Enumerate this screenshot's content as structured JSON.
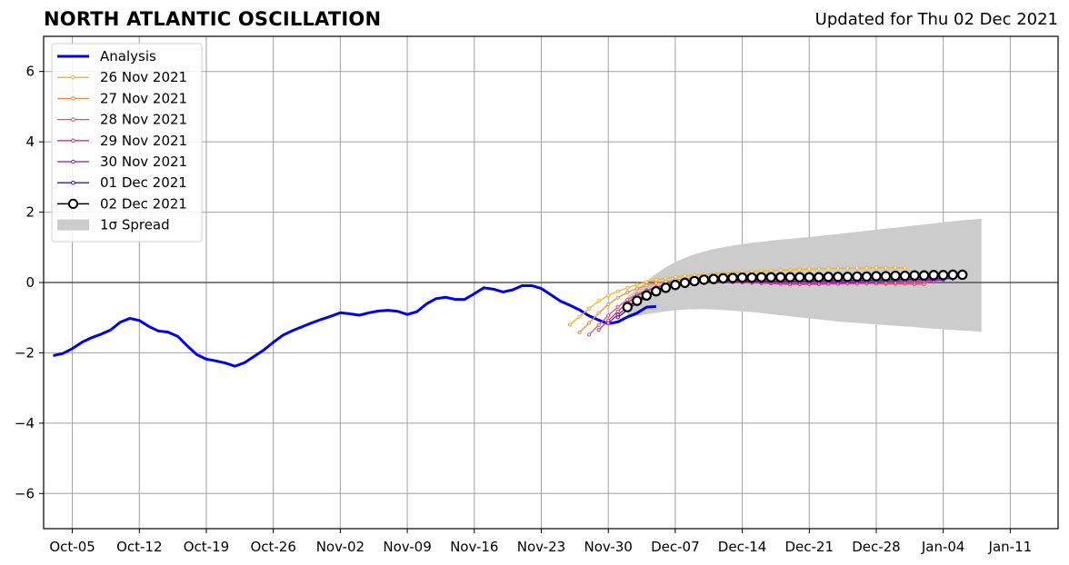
{
  "title": "NORTH ATLANTIC OSCILLATION",
  "subtitle": "Updated for Thu 02 Dec 2021",
  "chart_data": {
    "type": "line",
    "title": "NORTH ATLANTIC OSCILLATION",
    "subtitle": "Updated for Thu 02 Dec 2021",
    "xlabel": "",
    "ylabel": "",
    "ylim": [
      -7,
      7
    ],
    "xlim": [
      "2021-10-02",
      "2022-01-16"
    ],
    "grid": true,
    "legend_position": "upper-left",
    "x_ticks": [
      "Oct-05",
      "Oct-12",
      "Oct-19",
      "Oct-26",
      "Nov-02",
      "Nov-09",
      "Nov-16",
      "Nov-23",
      "Nov-30",
      "Dec-07",
      "Dec-14",
      "Dec-21",
      "Dec-28",
      "Jan-04",
      "Jan-11"
    ],
    "x_tick_dates": [
      "2021-10-05",
      "2021-10-12",
      "2021-10-19",
      "2021-10-26",
      "2021-11-02",
      "2021-11-09",
      "2021-11-16",
      "2021-11-23",
      "2021-11-30",
      "2021-12-07",
      "2021-12-14",
      "2021-12-21",
      "2021-12-28",
      "2022-01-04",
      "2022-01-11"
    ],
    "y_ticks": [
      -6,
      -4,
      -2,
      0,
      2,
      4,
      6
    ],
    "y_tick_labels": [
      "−6",
      "−4",
      "−2",
      "0",
      "2",
      "4",
      "6"
    ],
    "analysis": {
      "name": "Analysis",
      "color": "#0000ee",
      "start": "2021-10-03",
      "values": [
        -2.08,
        -2.02,
        -1.88,
        -1.7,
        -1.57,
        -1.47,
        -1.35,
        -1.13,
        -1.02,
        -1.08,
        -1.25,
        -1.38,
        -1.41,
        -1.53,
        -1.8,
        -2.05,
        -2.18,
        -2.23,
        -2.29,
        -2.38,
        -2.28,
        -2.1,
        -1.92,
        -1.7,
        -1.5,
        -1.37,
        -1.26,
        -1.15,
        -1.05,
        -0.96,
        -0.86,
        -0.89,
        -0.93,
        -0.86,
        -0.81,
        -0.79,
        -0.82,
        -0.91,
        -0.83,
        -0.61,
        -0.46,
        -0.42,
        -0.48,
        -0.48,
        -0.32,
        -0.15,
        -0.19,
        -0.27,
        -0.21,
        -0.09,
        -0.09,
        -0.17,
        -0.35,
        -0.53,
        -0.65,
        -0.78,
        -0.95,
        -1.07,
        -1.17,
        -1.12,
        -0.98,
        -0.87,
        -0.7,
        -0.68
      ]
    },
    "forecasts": [
      {
        "name": "26 Nov 2021",
        "color": "#f5b120",
        "start": "2021-11-26",
        "values": [
          -1.2,
          -0.97,
          -0.74,
          -0.53,
          -0.37,
          -0.25,
          -0.15,
          -0.06,
          0.02,
          0.08,
          0.12,
          0.16,
          0.19,
          0.21,
          0.23,
          0.25,
          0.27,
          0.28,
          0.3,
          0.31,
          0.33,
          0.34,
          0.35,
          0.36,
          0.37,
          0.38,
          0.39,
          0.4,
          0.4,
          0.41,
          0.41,
          0.41,
          0.42,
          0.42,
          0.42,
          0.41
        ]
      },
      {
        "name": "27 Nov 2021",
        "color": "#f28a40",
        "start": "2021-11-27",
        "values": [
          -1.42,
          -1.15,
          -0.87,
          -0.62,
          -0.43,
          -0.28,
          -0.17,
          -0.08,
          -0.02,
          0.03,
          0.07,
          0.1,
          0.13,
          0.15,
          0.17,
          0.18,
          0.19,
          0.2,
          0.2,
          0.21,
          0.21,
          0.22,
          0.22,
          0.22,
          0.22,
          0.22,
          0.21,
          0.21,
          0.2,
          0.2,
          0.19,
          0.19,
          0.18,
          0.17,
          0.16,
          0.15
        ]
      },
      {
        "name": "28 Nov 2021",
        "color": "#d9566d",
        "start": "2021-11-28",
        "values": [
          -1.48,
          -1.21,
          -0.94,
          -0.69,
          -0.49,
          -0.34,
          -0.22,
          -0.13,
          -0.07,
          -0.03,
          -0.01,
          0.01,
          0.02,
          0.02,
          0.02,
          0.01,
          0.01,
          0.0,
          -0.01,
          -0.01,
          -0.02,
          -0.02,
          -0.02,
          -0.02,
          -0.03,
          -0.03,
          -0.03,
          -0.03,
          -0.03,
          -0.03,
          -0.03,
          -0.04,
          -0.04,
          -0.04,
          -0.05,
          -0.05
        ]
      },
      {
        "name": "29 Nov 2021",
        "color": "#bb3a8c",
        "start": "2021-11-29",
        "values": [
          -1.35,
          -1.08,
          -0.82,
          -0.58,
          -0.38,
          -0.24,
          -0.14,
          -0.07,
          -0.03,
          0.0,
          0.01,
          0.02,
          0.02,
          0.02,
          0.01,
          0.0,
          -0.01,
          -0.02,
          -0.03,
          -0.04,
          -0.05,
          -0.05,
          -0.05,
          -0.05,
          -0.04,
          -0.04,
          -0.03,
          -0.03,
          -0.02,
          -0.02,
          -0.01,
          -0.01,
          0.0,
          0.0,
          0.01,
          0.02
        ]
      },
      {
        "name": "30 Nov 2021",
        "color": "#8b1fa6",
        "start": "2021-11-30",
        "values": [
          -1.15,
          -0.92,
          -0.7,
          -0.51,
          -0.35,
          -0.22,
          -0.12,
          -0.05,
          -0.01,
          0.02,
          0.03,
          0.04,
          0.04,
          0.03,
          0.03,
          0.02,
          0.02,
          0.01,
          0.01,
          0.0,
          0.0,
          0.0,
          0.0,
          0.01,
          0.01,
          0.02,
          0.02,
          0.03,
          0.03,
          0.04,
          0.04,
          0.05,
          0.05,
          0.06,
          0.06,
          0.07
        ]
      },
      {
        "name": "01 Dec 2021",
        "color": "#4a0f9a",
        "start": "2021-12-01",
        "values": [
          -0.99,
          -0.78,
          -0.58,
          -0.41,
          -0.27,
          -0.16,
          -0.08,
          -0.03,
          0.01,
          0.03,
          0.04,
          0.05,
          0.05,
          0.05,
          0.05,
          0.04,
          0.04,
          0.04,
          0.04,
          0.04,
          0.04,
          0.05,
          0.05,
          0.05,
          0.06,
          0.06,
          0.07,
          0.07,
          0.08,
          0.08,
          0.09,
          0.09,
          0.1,
          0.1,
          0.11,
          0.11
        ]
      },
      {
        "name": "02 Dec 2021",
        "color": "#000000",
        "start": "2021-12-02",
        "values": [
          -0.7,
          -0.52,
          -0.37,
          -0.25,
          -0.15,
          -0.07,
          -0.01,
          0.04,
          0.08,
          0.1,
          0.12,
          0.13,
          0.14,
          0.14,
          0.15,
          0.15,
          0.15,
          0.15,
          0.15,
          0.15,
          0.15,
          0.16,
          0.16,
          0.16,
          0.17,
          0.17,
          0.18,
          0.18,
          0.19,
          0.19,
          0.2,
          0.2,
          0.21,
          0.21,
          0.22,
          0.22
        ]
      }
    ],
    "spread": {
      "name": "1σ Spread",
      "color": "#cccccc",
      "start": "2021-12-02",
      "upper": [
        -0.4,
        -0.18,
        0.05,
        0.25,
        0.43,
        0.58,
        0.7,
        0.8,
        0.88,
        0.95,
        1.0,
        1.05,
        1.09,
        1.13,
        1.16,
        1.19,
        1.22,
        1.24,
        1.27,
        1.29,
        1.32,
        1.35,
        1.38,
        1.41,
        1.44,
        1.47,
        1.5,
        1.53,
        1.56,
        1.59,
        1.62,
        1.65,
        1.68,
        1.71,
        1.74,
        1.77,
        1.79,
        1.81
      ],
      "lower": [
        -1.0,
        -0.95,
        -0.9,
        -0.86,
        -0.82,
        -0.79,
        -0.77,
        -0.76,
        -0.76,
        -0.77,
        -0.78,
        -0.8,
        -0.82,
        -0.84,
        -0.87,
        -0.9,
        -0.93,
        -0.96,
        -0.99,
        -1.02,
        -1.05,
        -1.08,
        -1.11,
        -1.13,
        -1.15,
        -1.17,
        -1.19,
        -1.21,
        -1.23,
        -1.25,
        -1.27,
        -1.29,
        -1.31,
        -1.33,
        -1.35,
        -1.37,
        -1.38,
        -1.4
      ]
    }
  }
}
